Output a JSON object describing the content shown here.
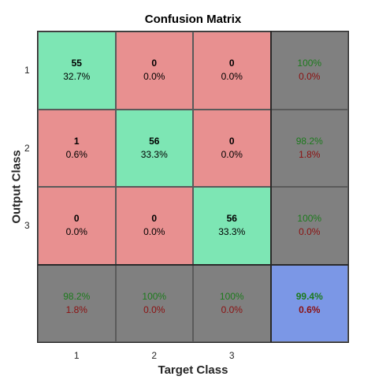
{
  "chart_data": {
    "type": "heatmap",
    "title": "Confusion Matrix",
    "xlabel": "Target Class",
    "ylabel": "Output Class",
    "x_tick_labels": [
      "1",
      "2",
      "3"
    ],
    "y_tick_labels": [
      "1",
      "2",
      "3"
    ],
    "matrix": [
      [
        {
          "count": "55",
          "pct": "32.7%"
        },
        {
          "count": "0",
          "pct": "0.0%"
        },
        {
          "count": "0",
          "pct": "0.0%"
        }
      ],
      [
        {
          "count": "1",
          "pct": "0.6%"
        },
        {
          "count": "56",
          "pct": "33.3%"
        },
        {
          "count": "0",
          "pct": "0.0%"
        }
      ],
      [
        {
          "count": "0",
          "pct": "0.0%"
        },
        {
          "count": "0",
          "pct": "0.0%"
        },
        {
          "count": "56",
          "pct": "33.3%"
        }
      ]
    ],
    "row_summary": [
      {
        "acc": "100%",
        "err": "0.0%"
      },
      {
        "acc": "98.2%",
        "err": "1.8%"
      },
      {
        "acc": "100%",
        "err": "0.0%"
      }
    ],
    "col_summary": [
      {
        "acc": "98.2%",
        "err": "1.8%"
      },
      {
        "acc": "100%",
        "err": "0.0%"
      },
      {
        "acc": "100%",
        "err": "0.0%"
      }
    ],
    "overall": {
      "acc": "99.4%",
      "err": "0.6%"
    },
    "colors": {
      "correct": "#7de6b4",
      "incorrect": "#e89090",
      "summary": "#808080",
      "overall": "#7b97e6"
    }
  }
}
